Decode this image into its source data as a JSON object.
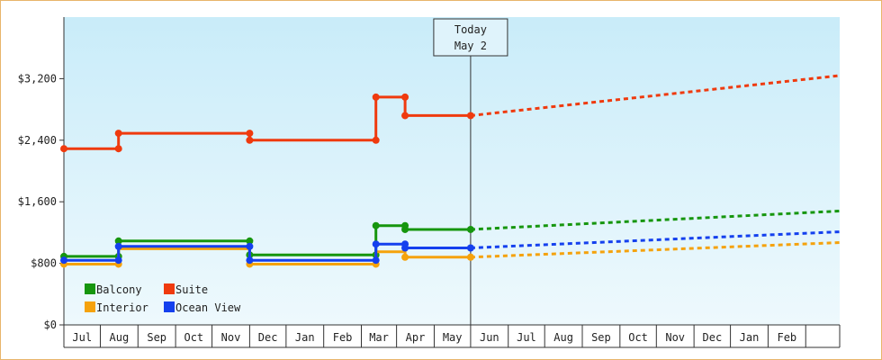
{
  "chart_data": {
    "type": "line",
    "title": "",
    "xlabel": "",
    "ylabel": "",
    "ylim": [
      0,
      4000
    ],
    "yticks": [
      0,
      800,
      1600,
      2400,
      3200
    ],
    "ytick_labels": [
      "$0",
      "$800",
      "$1,600",
      "$2,400",
      "$3,200"
    ],
    "month_labels": [
      "Jul",
      "Aug",
      "Sep",
      "Oct",
      "Nov",
      "Dec",
      "Jan",
      "Feb",
      "Mar",
      "Apr",
      "May",
      "Jun",
      "Jul",
      "Aug",
      "Sep",
      "Oct",
      "Nov",
      "Dec",
      "Jan",
      "Feb"
    ],
    "xlim": [
      "2019-06-01",
      "2021-03-01"
    ],
    "grid": false,
    "background_gradient": [
      "#c9ecf9",
      "#eef9fd"
    ],
    "today_marker": {
      "date": "2020-05-01",
      "line1": "Today",
      "line2": "May 2"
    },
    "legend": {
      "position": "bottom-left"
    },
    "series": [
      {
        "name": "Balcony",
        "color": "#16960e",
        "history": [
          [
            "2019-06-01",
            890
          ],
          [
            "2019-07-16",
            890
          ],
          [
            "2019-07-16",
            1090
          ],
          [
            "2019-11-01",
            1090
          ],
          [
            "2019-11-01",
            910
          ],
          [
            "2020-02-13",
            910
          ],
          [
            "2020-02-13",
            1290
          ],
          [
            "2020-03-08",
            1290
          ],
          [
            "2020-03-08",
            1240
          ],
          [
            "2020-05-01",
            1240
          ]
        ],
        "markers": [
          [
            "2019-06-01",
            890
          ],
          [
            "2019-07-16",
            890
          ],
          [
            "2019-07-16",
            1090
          ],
          [
            "2019-11-01",
            1090
          ],
          [
            "2019-11-01",
            910
          ],
          [
            "2020-02-13",
            910
          ],
          [
            "2020-02-13",
            1290
          ],
          [
            "2020-03-08",
            1290
          ],
          [
            "2020-03-08",
            1240
          ],
          [
            "2020-05-01",
            1240
          ]
        ],
        "forecast": [
          [
            "2020-05-01",
            1240
          ],
          [
            "2021-03-01",
            1480
          ]
        ]
      },
      {
        "name": "Suite",
        "color": "#ef3a0e",
        "history": [
          [
            "2019-06-01",
            2290
          ],
          [
            "2019-07-16",
            2290
          ],
          [
            "2019-07-16",
            2490
          ],
          [
            "2019-11-01",
            2490
          ],
          [
            "2019-11-01",
            2400
          ],
          [
            "2020-02-13",
            2400
          ],
          [
            "2020-02-13",
            2960
          ],
          [
            "2020-03-08",
            2960
          ],
          [
            "2020-03-08",
            2720
          ],
          [
            "2020-05-01",
            2720
          ]
        ],
        "markers": [
          [
            "2019-06-01",
            2290
          ],
          [
            "2019-07-16",
            2290
          ],
          [
            "2019-07-16",
            2490
          ],
          [
            "2019-11-01",
            2490
          ],
          [
            "2019-11-01",
            2400
          ],
          [
            "2020-02-13",
            2400
          ],
          [
            "2020-02-13",
            2960
          ],
          [
            "2020-03-08",
            2960
          ],
          [
            "2020-03-08",
            2720
          ],
          [
            "2020-05-01",
            2720
          ]
        ],
        "forecast": [
          [
            "2020-05-01",
            2720
          ],
          [
            "2021-03-01",
            3240
          ]
        ]
      },
      {
        "name": "Interior",
        "color": "#f5a20c",
        "history": [
          [
            "2019-06-01",
            790
          ],
          [
            "2019-07-16",
            790
          ],
          [
            "2019-07-16",
            990
          ],
          [
            "2019-11-01",
            990
          ],
          [
            "2019-11-01",
            790
          ],
          [
            "2020-02-13",
            790
          ],
          [
            "2020-02-13",
            950
          ],
          [
            "2020-03-08",
            950
          ],
          [
            "2020-03-08",
            880
          ],
          [
            "2020-05-01",
            880
          ]
        ],
        "markers": [
          [
            "2019-06-01",
            790
          ],
          [
            "2019-07-16",
            790
          ],
          [
            "2019-11-01",
            790
          ],
          [
            "2020-02-13",
            790
          ],
          [
            "2020-03-08",
            880
          ],
          [
            "2020-05-01",
            880
          ]
        ],
        "forecast": [
          [
            "2020-05-01",
            880
          ],
          [
            "2021-03-01",
            1070
          ]
        ]
      },
      {
        "name": "Ocean View",
        "color": "#1440ee",
        "history": [
          [
            "2019-06-01",
            840
          ],
          [
            "2019-07-16",
            840
          ],
          [
            "2019-07-16",
            1020
          ],
          [
            "2019-11-01",
            1020
          ],
          [
            "2019-11-01",
            840
          ],
          [
            "2020-02-13",
            840
          ],
          [
            "2020-02-13",
            1050
          ],
          [
            "2020-03-08",
            1050
          ],
          [
            "2020-03-08",
            1000
          ],
          [
            "2020-05-01",
            1000
          ]
        ],
        "markers": [
          [
            "2019-06-01",
            840
          ],
          [
            "2019-07-16",
            840
          ],
          [
            "2019-07-16",
            1020
          ],
          [
            "2019-11-01",
            1020
          ],
          [
            "2019-11-01",
            840
          ],
          [
            "2020-02-13",
            840
          ],
          [
            "2020-02-13",
            1050
          ],
          [
            "2020-03-08",
            1050
          ],
          [
            "2020-03-08",
            1000
          ],
          [
            "2020-05-01",
            1000
          ]
        ],
        "forecast": [
          [
            "2020-05-01",
            1000
          ],
          [
            "2021-03-01",
            1210
          ]
        ]
      }
    ]
  }
}
